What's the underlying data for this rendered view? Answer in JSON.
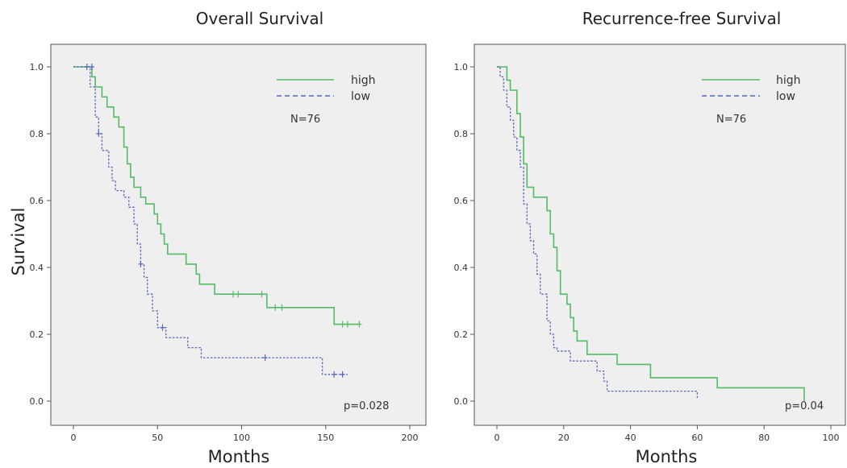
{
  "chart_data": [
    {
      "type": "line",
      "title": "Overall Survival",
      "xlabel": "Months",
      "ylabel": "Survival",
      "xlim": [
        0,
        200
      ],
      "ylim": [
        0,
        1.0
      ],
      "xticks": [
        "0",
        "50",
        "100",
        "150",
        "200"
      ],
      "yticks": [
        "0.0",
        "0.2",
        "0.4",
        "0.6",
        "0.8",
        "1.0"
      ],
      "n_label": "N=76",
      "p_label": "p=0.028",
      "legend_position": "top-right",
      "series": [
        {
          "name": "high",
          "color": "#55bb66",
          "dash": "solid",
          "steps": [
            [
              0,
              1.0
            ],
            [
              11,
              1.0
            ],
            [
              11,
              0.97
            ],
            [
              13,
              0.97
            ],
            [
              13,
              0.94
            ],
            [
              17,
              0.94
            ],
            [
              17,
              0.91
            ],
            [
              20,
              0.91
            ],
            [
              20,
              0.88
            ],
            [
              24,
              0.88
            ],
            [
              24,
              0.85
            ],
            [
              27,
              0.85
            ],
            [
              27,
              0.82
            ],
            [
              30,
              0.82
            ],
            [
              30,
              0.76
            ],
            [
              32,
              0.76
            ],
            [
              32,
              0.71
            ],
            [
              34,
              0.71
            ],
            [
              34,
              0.67
            ],
            [
              36,
              0.67
            ],
            [
              36,
              0.64
            ],
            [
              40,
              0.64
            ],
            [
              40,
              0.61
            ],
            [
              43,
              0.61
            ],
            [
              43,
              0.59
            ],
            [
              48,
              0.59
            ],
            [
              48,
              0.56
            ],
            [
              50,
              0.56
            ],
            [
              50,
              0.53
            ],
            [
              52,
              0.53
            ],
            [
              52,
              0.5
            ],
            [
              54,
              0.5
            ],
            [
              54,
              0.47
            ],
            [
              56,
              0.47
            ],
            [
              56,
              0.44
            ],
            [
              67,
              0.44
            ],
            [
              67,
              0.41
            ],
            [
              73,
              0.41
            ],
            [
              73,
              0.38
            ],
            [
              75,
              0.38
            ],
            [
              75,
              0.35
            ],
            [
              84,
              0.35
            ],
            [
              84,
              0.32
            ],
            [
              115,
              0.32
            ],
            [
              115,
              0.28
            ],
            [
              155,
              0.28
            ],
            [
              155,
              0.23
            ],
            [
              170,
              0.23
            ]
          ],
          "censors": [
            [
              95,
              0.32
            ],
            [
              98,
              0.32
            ],
            [
              112,
              0.32
            ],
            [
              120,
              0.28
            ],
            [
              124,
              0.28
            ],
            [
              160,
              0.23
            ],
            [
              163,
              0.23
            ],
            [
              170,
              0.23
            ]
          ]
        },
        {
          "name": "low",
          "color": "#5566bb",
          "dash": "dashed",
          "steps": [
            [
              0,
              1.0
            ],
            [
              10,
              1.0
            ],
            [
              10,
              0.94
            ],
            [
              13,
              0.94
            ],
            [
              13,
              0.85
            ],
            [
              15,
              0.85
            ],
            [
              15,
              0.8
            ],
            [
              17,
              0.8
            ],
            [
              17,
              0.75
            ],
            [
              21,
              0.75
            ],
            [
              21,
              0.7
            ],
            [
              23,
              0.7
            ],
            [
              23,
              0.66
            ],
            [
              25,
              0.66
            ],
            [
              25,
              0.63
            ],
            [
              30,
              0.63
            ],
            [
              30,
              0.61
            ],
            [
              33,
              0.61
            ],
            [
              33,
              0.58
            ],
            [
              36,
              0.58
            ],
            [
              36,
              0.53
            ],
            [
              38,
              0.53
            ],
            [
              38,
              0.47
            ],
            [
              40,
              0.47
            ],
            [
              40,
              0.41
            ],
            [
              42,
              0.41
            ],
            [
              42,
              0.37
            ],
            [
              44,
              0.37
            ],
            [
              44,
              0.32
            ],
            [
              47,
              0.32
            ],
            [
              47,
              0.27
            ],
            [
              50,
              0.27
            ],
            [
              50,
              0.22
            ],
            [
              55,
              0.22
            ],
            [
              55,
              0.19
            ],
            [
              68,
              0.19
            ],
            [
              68,
              0.16
            ],
            [
              76,
              0.16
            ],
            [
              76,
              0.13
            ],
            [
              148,
              0.13
            ],
            [
              148,
              0.08
            ],
            [
              163,
              0.08
            ]
          ],
          "censors": [
            [
              8,
              1.0
            ],
            [
              11,
              1.0
            ],
            [
              15,
              0.8
            ],
            [
              40,
              0.41
            ],
            [
              53,
              0.22
            ],
            [
              114,
              0.13
            ],
            [
              155,
              0.08
            ],
            [
              160,
              0.08
            ]
          ]
        }
      ]
    },
    {
      "type": "line",
      "title": "Recurrence-free Survival",
      "xlabel": "Months",
      "ylabel": "",
      "xlim": [
        0,
        100
      ],
      "ylim": [
        0,
        1.0
      ],
      "xticks": [
        "0",
        "20",
        "40",
        "60",
        "80",
        "100"
      ],
      "yticks": [
        "0.0",
        "0.2",
        "0.4",
        "0.6",
        "0.8",
        "1.0"
      ],
      "n_label": "N=76",
      "p_label": "p=0.04",
      "legend_position": "top-right",
      "series": [
        {
          "name": "high",
          "color": "#55bb66",
          "dash": "solid",
          "steps": [
            [
              0,
              1.0
            ],
            [
              3,
              1.0
            ],
            [
              3,
              0.96
            ],
            [
              4,
              0.96
            ],
            [
              4,
              0.93
            ],
            [
              6,
              0.93
            ],
            [
              6,
              0.86
            ],
            [
              7,
              0.86
            ],
            [
              7,
              0.79
            ],
            [
              8,
              0.79
            ],
            [
              8,
              0.71
            ],
            [
              9,
              0.71
            ],
            [
              9,
              0.64
            ],
            [
              11,
              0.64
            ],
            [
              11,
              0.61
            ],
            [
              15,
              0.61
            ],
            [
              15,
              0.57
            ],
            [
              16,
              0.57
            ],
            [
              16,
              0.5
            ],
            [
              17,
              0.5
            ],
            [
              17,
              0.46
            ],
            [
              18,
              0.46
            ],
            [
              18,
              0.39
            ],
            [
              19,
              0.39
            ],
            [
              19,
              0.32
            ],
            [
              21,
              0.32
            ],
            [
              21,
              0.29
            ],
            [
              22,
              0.29
            ],
            [
              22,
              0.25
            ],
            [
              23,
              0.25
            ],
            [
              23,
              0.21
            ],
            [
              24,
              0.21
            ],
            [
              24,
              0.18
            ],
            [
              27,
              0.18
            ],
            [
              27,
              0.14
            ],
            [
              36,
              0.14
            ],
            [
              36,
              0.11
            ],
            [
              46,
              0.11
            ],
            [
              46,
              0.07
            ],
            [
              66,
              0.07
            ],
            [
              66,
              0.04
            ],
            [
              92,
              0.04
            ],
            [
              92,
              0.0
            ]
          ],
          "censors": []
        },
        {
          "name": "low",
          "color": "#5566bb",
          "dash": "dashed",
          "steps": [
            [
              0,
              1.0
            ],
            [
              1,
              1.0
            ],
            [
              1,
              0.97
            ],
            [
              2,
              0.97
            ],
            [
              2,
              0.93
            ],
            [
              3,
              0.93
            ],
            [
              3,
              0.88
            ],
            [
              4,
              0.88
            ],
            [
              4,
              0.84
            ],
            [
              5,
              0.84
            ],
            [
              5,
              0.79
            ],
            [
              6,
              0.79
            ],
            [
              6,
              0.75
            ],
            [
              7,
              0.75
            ],
            [
              7,
              0.7
            ],
            [
              8,
              0.7
            ],
            [
              8,
              0.59
            ],
            [
              9,
              0.59
            ],
            [
              9,
              0.53
            ],
            [
              10,
              0.53
            ],
            [
              10,
              0.48
            ],
            [
              11,
              0.48
            ],
            [
              11,
              0.44
            ],
            [
              12,
              0.44
            ],
            [
              12,
              0.38
            ],
            [
              13,
              0.38
            ],
            [
              13,
              0.32
            ],
            [
              15,
              0.32
            ],
            [
              15,
              0.24
            ],
            [
              16,
              0.24
            ],
            [
              16,
              0.2
            ],
            [
              17,
              0.2
            ],
            [
              17,
              0.16
            ],
            [
              18,
              0.16
            ],
            [
              18,
              0.15
            ],
            [
              22,
              0.15
            ],
            [
              22,
              0.12
            ],
            [
              30,
              0.12
            ],
            [
              30,
              0.09
            ],
            [
              32,
              0.09
            ],
            [
              32,
              0.06
            ],
            [
              33,
              0.06
            ],
            [
              33,
              0.03
            ],
            [
              60,
              0.03
            ],
            [
              60,
              0.01
            ]
          ],
          "censors": []
        }
      ]
    }
  ]
}
